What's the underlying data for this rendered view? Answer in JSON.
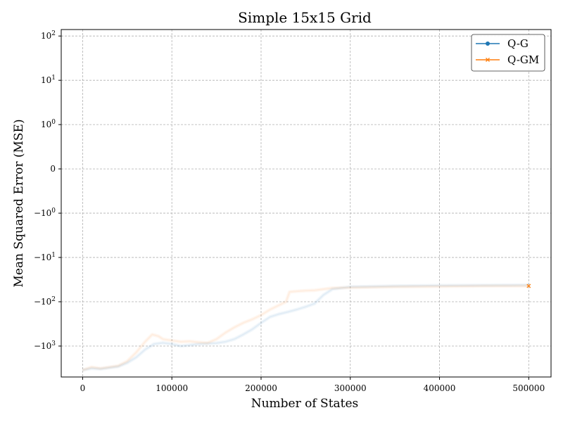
{
  "chart_data": {
    "type": "line",
    "title": "Simple 15x15 Grid",
    "xlabel": "Number of States",
    "ylabel": "Mean Squared Error (MSE)",
    "yscale": "symlog",
    "xlim": [
      -24000,
      525000
    ],
    "ylim": [
      -5000,
      140
    ],
    "x_ticks": [
      0,
      100000,
      200000,
      300000,
      400000,
      500000
    ],
    "x_tick_labels": [
      "0",
      "100000",
      "200000",
      "300000",
      "400000",
      "500000"
    ],
    "y_ticks": [
      100,
      10,
      1,
      0,
      -1,
      -10,
      -100,
      -1000
    ],
    "y_tick_labels": [
      "10^2",
      "10^1",
      "10^0",
      "0",
      "−10^0",
      "−10^1",
      "−10^2",
      "−10^3"
    ],
    "grid": true,
    "legend_position": "top-right",
    "series": [
      {
        "name": "Q-G",
        "color": "#1f77b4",
        "marker": "circle",
        "opacity": 0.06,
        "x": [
          0,
          10000,
          20000,
          30000,
          40000,
          50000,
          60000,
          70000,
          80000,
          90000,
          100000,
          110000,
          120000,
          130000,
          140000,
          150000,
          160000,
          170000,
          180000,
          190000,
          200000,
          210000,
          220000,
          230000,
          240000,
          250000,
          260000,
          270000,
          280000,
          300000,
          350000,
          400000,
          450000,
          500000
        ],
        "y": [
          -3500,
          -3200,
          -3300,
          -3100,
          -2900,
          -2400,
          -1800,
          -1200,
          -900,
          -850,
          -900,
          -1000,
          -950,
          -900,
          -880,
          -860,
          -800,
          -700,
          -550,
          -420,
          -300,
          -220,
          -190,
          -170,
          -150,
          -130,
          -110,
          -70,
          -52,
          -46,
          -44,
          -43,
          -42.5,
          -42
        ]
      },
      {
        "name": "Q-GM",
        "color": "#ff7f0e",
        "marker": "x",
        "opacity": 0.06,
        "x": [
          0,
          10000,
          20000,
          30000,
          40000,
          50000,
          60000,
          70000,
          78000,
          85000,
          90000,
          100000,
          110000,
          120000,
          130000,
          140000,
          150000,
          160000,
          170000,
          180000,
          190000,
          200000,
          210000,
          220000,
          228000,
          232000,
          240000,
          250000,
          260000,
          270000,
          280000,
          300000,
          350000,
          400000,
          450000,
          500000
        ],
        "y": [
          -3500,
          -3000,
          -3200,
          -3000,
          -2800,
          -2200,
          -1400,
          -800,
          -550,
          -600,
          -700,
          -750,
          -800,
          -780,
          -820,
          -850,
          -700,
          -500,
          -380,
          -300,
          -250,
          -200,
          -150,
          -120,
          -100,
          -60,
          -58,
          -56,
          -55,
          -52,
          -49,
          -48,
          -46,
          -45,
          -44,
          -44
        ]
      }
    ]
  }
}
